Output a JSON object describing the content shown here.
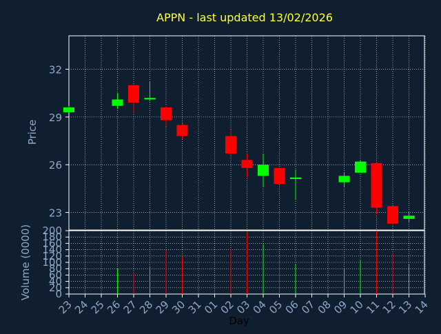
{
  "title": "APPN - last updated 13/02/2026",
  "colors": {
    "background": "#0f1f2f",
    "title": "#ffff33",
    "axis_text": "#8fa8c8",
    "xlabel": "#000000",
    "grid": "#ffffff",
    "up": "#00ff00",
    "down": "#ff0000"
  },
  "chart_data": [
    {
      "type": "candlestick",
      "ylabel": "Price",
      "ylim": [
        21.9,
        34.1
      ],
      "yticks": [
        23,
        26,
        29,
        32
      ],
      "grid": "dotted",
      "x_ticks": [
        "23",
        "24",
        "25",
        "26",
        "27",
        "28",
        "29",
        "30",
        "31",
        "01",
        "02",
        "03",
        "04",
        "05",
        "06",
        "07",
        "08",
        "09",
        "10",
        "11",
        "12",
        "13",
        "14"
      ],
      "candles": [
        {
          "day": "23",
          "open": 29.3,
          "high": 29.7,
          "low": 29.3,
          "close": 29.6
        },
        {
          "day": "26",
          "open": 29.7,
          "high": 30.5,
          "low": 29.5,
          "close": 30.1
        },
        {
          "day": "27",
          "open": 31.0,
          "high": 31.0,
          "low": 29.2,
          "close": 29.9
        },
        {
          "day": "28",
          "open": 30.1,
          "high": 31.2,
          "low": 30.0,
          "close": 30.2
        },
        {
          "day": "29",
          "open": 29.6,
          "high": 29.7,
          "low": 28.4,
          "close": 28.8
        },
        {
          "day": "30",
          "open": 28.5,
          "high": 28.6,
          "low": 27.6,
          "close": 27.8
        },
        {
          "day": "02",
          "open": 27.8,
          "high": 28.2,
          "low": 26.6,
          "close": 26.7
        },
        {
          "day": "03",
          "open": 26.3,
          "high": 26.7,
          "low": 25.2,
          "close": 25.8
        },
        {
          "day": "04",
          "open": 25.3,
          "high": 26.7,
          "low": 24.6,
          "close": 26.0
        },
        {
          "day": "05",
          "open": 25.8,
          "high": 25.8,
          "low": 24.8,
          "close": 24.8
        },
        {
          "day": "06",
          "open": 25.1,
          "high": 25.7,
          "low": 23.8,
          "close": 25.2
        },
        {
          "day": "09",
          "open": 24.9,
          "high": 25.5,
          "low": 24.6,
          "close": 25.3
        },
        {
          "day": "10",
          "open": 25.5,
          "high": 26.3,
          "low": 25.5,
          "close": 26.2
        },
        {
          "day": "11",
          "open": 26.1,
          "high": 26.2,
          "low": 22.9,
          "close": 23.3
        },
        {
          "day": "12",
          "open": 23.4,
          "high": 23.4,
          "low": 22.2,
          "close": 22.3
        },
        {
          "day": "13",
          "open": 22.6,
          "high": 23.0,
          "low": 22.4,
          "close": 22.8
        }
      ]
    },
    {
      "type": "bar",
      "ylabel": "Volume (0000)",
      "xlabel": "Day",
      "ylim": [
        0,
        200
      ],
      "yticks": [
        0,
        20,
        40,
        60,
        80,
        100,
        120,
        140,
        160,
        180,
        200
      ],
      "grid": "dotted",
      "bars": [
        {
          "day": "23",
          "value": 0,
          "direction": "up"
        },
        {
          "day": "26",
          "value": 80,
          "direction": "up"
        },
        {
          "day": "27",
          "value": 70,
          "direction": "down"
        },
        {
          "day": "28",
          "value": 85,
          "direction": "up"
        },
        {
          "day": "29",
          "value": 140,
          "direction": "down"
        },
        {
          "day": "30",
          "value": 122,
          "direction": "down"
        },
        {
          "day": "02",
          "value": 143,
          "direction": "down"
        },
        {
          "day": "03",
          "value": 196,
          "direction": "down"
        },
        {
          "day": "04",
          "value": 157,
          "direction": "up"
        },
        {
          "day": "05",
          "value": 110,
          "direction": "down"
        },
        {
          "day": "06",
          "value": 95,
          "direction": "up"
        },
        {
          "day": "09",
          "value": 82,
          "direction": "up"
        },
        {
          "day": "10",
          "value": 107,
          "direction": "up"
        },
        {
          "day": "11",
          "value": 200,
          "direction": "down"
        },
        {
          "day": "12",
          "value": 130,
          "direction": "down"
        },
        {
          "day": "13",
          "value": 95,
          "direction": "up"
        }
      ]
    }
  ]
}
